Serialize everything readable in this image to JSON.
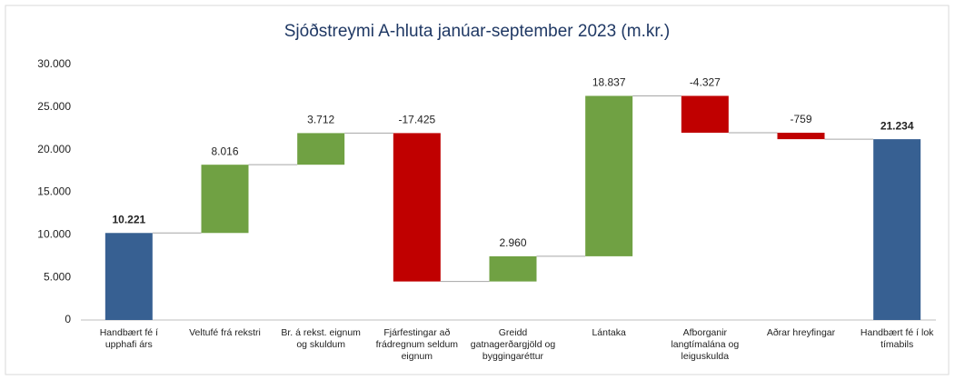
{
  "chart_data": {
    "type": "waterfall",
    "title": "Sjóðstreymi A-hluta janúar-september 2023 (m.kr.)",
    "categories": [
      "Handbært fé í upphafi árs",
      "Veltufé frá rekstri",
      "Br. á rekst. eignum og skuldum",
      "Fjárfestingar að frádregnum seldum eignum",
      "Greidd gatnagerðargjöld og byggingaréttur",
      "Lántaka",
      "Afborganir langtímalána og leiguskulda",
      "Aðrar hreyfingar",
      "Handbært fé í lok tímabils"
    ],
    "values": [
      10221,
      8016,
      3712,
      -17425,
      2960,
      18837,
      -4327,
      -759,
      21234
    ],
    "value_labels": [
      "10.221",
      "8.016",
      "3.712",
      "-17.425",
      "2.960",
      "18.837",
      "-4.327",
      "-759",
      "21.234"
    ],
    "colors": [
      "#376092",
      "#70a143",
      "#70a143",
      "#c00000",
      "#70a143",
      "#70a143",
      "#c00000",
      "#c00000",
      "#376092"
    ],
    "ylim": [
      0,
      30000
    ],
    "yticks": [
      0,
      {
        "value": 5000,
        "label": "5.000"
      },
      {
        "value": 10000,
        "label": "10.000"
      },
      {
        "value": 15000,
        "label": "15.000"
      },
      {
        "value": 20000,
        "label": "20.000"
      },
      {
        "value": 25000,
        "label": "25.000"
      },
      {
        "value": 30000,
        "label": "30.000"
      }
    ]
  }
}
